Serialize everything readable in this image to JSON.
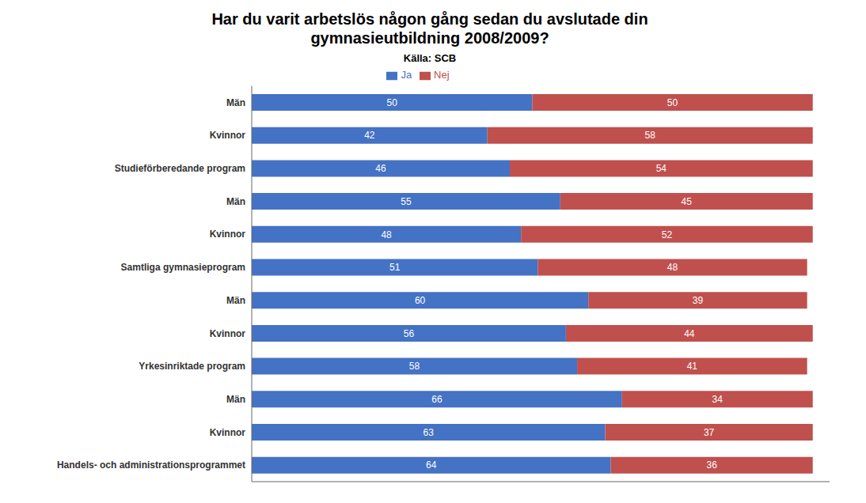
{
  "chart_data": {
    "type": "bar",
    "orientation": "horizontal",
    "stacked": true,
    "title": "Har du varit arbetslös någon gång sedan du avslutade din\ngymnasieutbildning 2008/2009?",
    "subtitle": "Källa: SCB",
    "categories": [
      "Män",
      "Kvinnor",
      "Studieförberedande program",
      "Män",
      "Kvinnor",
      "Samtliga gymnasieprogram",
      "Män",
      "Kvinnor",
      "Yrkesinriktade program",
      "Män",
      "Kvinnor",
      "Handels- och administrationsprogrammet"
    ],
    "series": [
      {
        "name": "Ja",
        "color": "#4472C4",
        "values": [
          50,
          42,
          46,
          55,
          48,
          51,
          60,
          56,
          58,
          66,
          63,
          64
        ]
      },
      {
        "name": "Nej",
        "color": "#C0504D",
        "values": [
          50,
          58,
          54,
          45,
          52,
          48,
          39,
          44,
          41,
          34,
          37,
          36
        ]
      }
    ],
    "xlim": [
      0,
      103
    ],
    "xticks": [],
    "data_labels": true,
    "tick_labels": "y",
    "legend": "top",
    "grid": false
  }
}
